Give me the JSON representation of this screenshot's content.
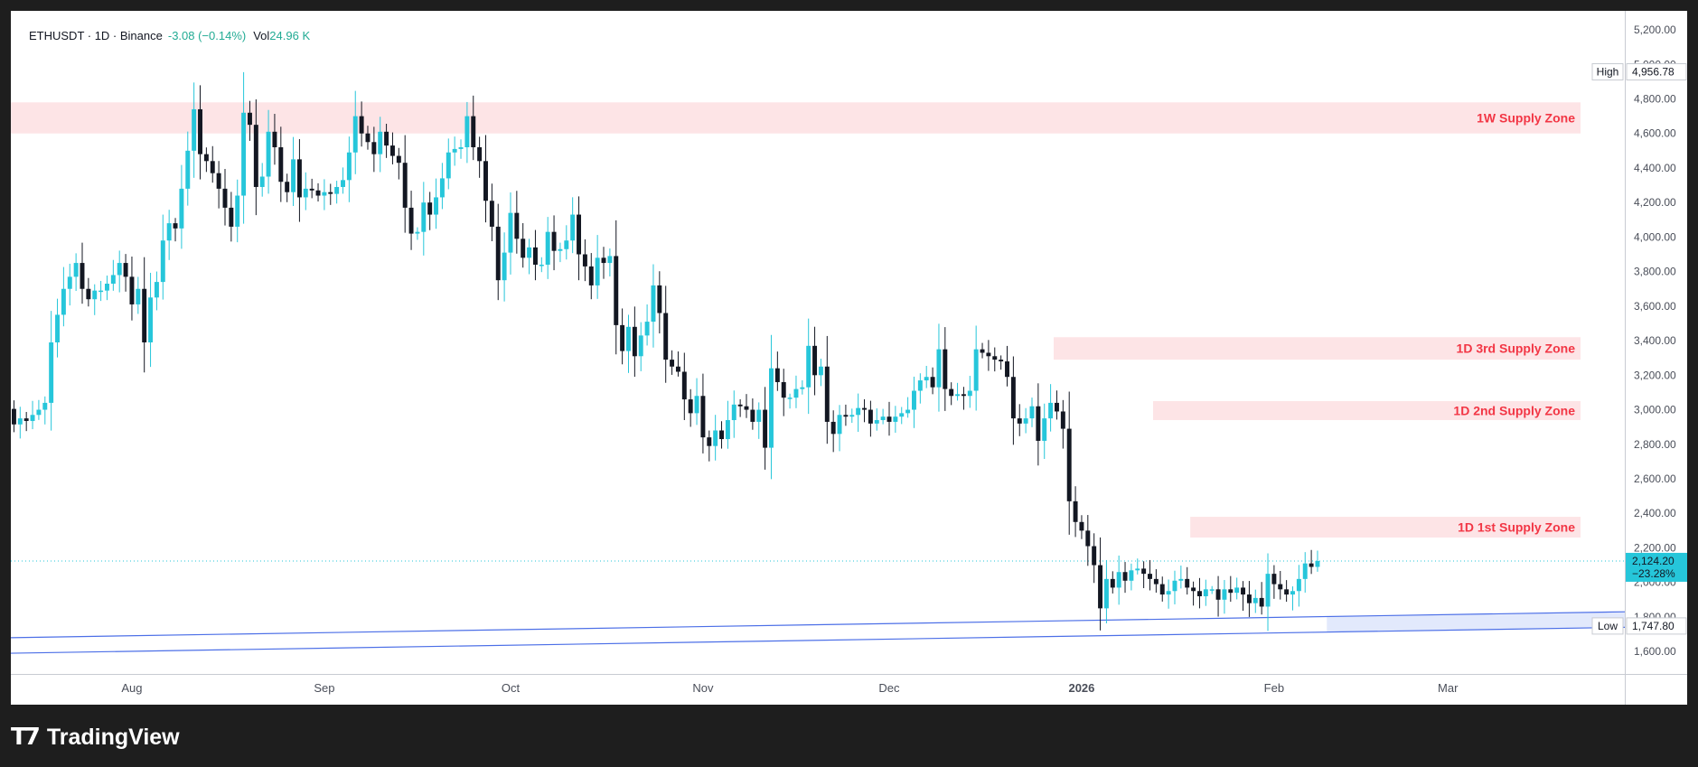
{
  "header": {
    "symbol": "ETHUSDT · 1D · Binance",
    "change": "-3.08 (−0.14%)",
    "vol_label": "Vol",
    "vol_value": "24.96 K"
  },
  "footer": {
    "brand": "TradingView",
    "logo_icon": "tradingview-logo-icon"
  },
  "colors": {
    "up": "#26c6da",
    "down": "#131722",
    "zone_fill": "#fde4e6",
    "zone_text": "#f23645",
    "trendline": "#4c6fe7",
    "last_price_box": "#26c6da",
    "background": "#1e1e1e"
  },
  "chart_data": {
    "type": "candlestick",
    "title": "ETHUSDT · 1D · Binance",
    "ylim": [
      1500,
      5250
    ],
    "y_ticks": [
      1600,
      1800,
      2000,
      2200,
      2400,
      2600,
      2800,
      3000,
      3200,
      3400,
      3600,
      3800,
      4000,
      4200,
      4400,
      4600,
      4800,
      5000,
      5200
    ],
    "y_tick_labels": [
      "1,600.00",
      "1,800.00",
      "2,000.00",
      "2,200.00",
      "2,400.00",
      "2,600.00",
      "2,800.00",
      "3,000.00",
      "3,200.00",
      "3,400.00",
      "3,600.00",
      "3,800.00",
      "4,000.00",
      "4,200.00",
      "4,400.00",
      "4,600.00",
      "4,800.00",
      "5,000.00",
      "5,200.00"
    ],
    "x_labels": [
      {
        "label": "Aug",
        "index": 19
      },
      {
        "label": "Sep",
        "index": 50
      },
      {
        "label": "Oct",
        "index": 80
      },
      {
        "label": "Nov",
        "index": 111
      },
      {
        "label": "Dec",
        "index": 141
      },
      {
        "label": "2026",
        "index": 172
      },
      {
        "label": "Feb",
        "index": 203
      },
      {
        "label": "Mar",
        "index": 231
      }
    ],
    "total_slots": 260,
    "closes": [
      2915,
      2950,
      2935,
      2970,
      3000,
      3040,
      3390,
      3550,
      3700,
      3770,
      3850,
      3700,
      3640,
      3690,
      3690,
      3730,
      3780,
      3850,
      3770,
      3610,
      3700,
      3390,
      3650,
      3740,
      3980,
      4080,
      4050,
      4280,
      4500,
      4740,
      4480,
      4440,
      4370,
      4280,
      4170,
      4060,
      4240,
      4720,
      4650,
      4290,
      4350,
      4610,
      4520,
      4320,
      4260,
      4450,
      4230,
      4280,
      4270,
      4240,
      4260,
      4250,
      4290,
      4330,
      4490,
      4700,
      4600,
      4550,
      4480,
      4610,
      4530,
      4470,
      4430,
      4170,
      4020,
      4030,
      4200,
      4130,
      4230,
      4340,
      4490,
      4510,
      4520,
      4700,
      4520,
      4440,
      4210,
      4060,
      3750,
      3910,
      4140,
      3990,
      3880,
      3940,
      3840,
      3840,
      4030,
      3920,
      3930,
      3980,
      4130,
      3900,
      3830,
      3720,
      3880,
      3850,
      3890,
      3490,
      3340,
      3480,
      3310,
      3430,
      3510,
      3720,
      3560,
      3290,
      3250,
      3220,
      3060,
      2980,
      3080,
      2840,
      2790,
      2880,
      2830,
      2940,
      3030,
      3020,
      3000,
      2930,
      3000,
      2780,
      3240,
      3160,
      3070,
      3070,
      3120,
      3130,
      3370,
      3200,
      3250,
      2930,
      2860,
      2970,
      2960,
      2970,
      3010,
      3000,
      2920,
      2940,
      2960,
      2930,
      2960,
      2980,
      3000,
      3110,
      3170,
      3190,
      3130,
      3350,
      3120,
      3080,
      3090,
      3080,
      3110,
      3350,
      3330,
      3310,
      3290,
      3280,
      3190,
      2950,
      2920,
      2950,
      3020,
      2820,
      2950,
      3040,
      2990,
      2890,
      2470,
      2350,
      2300,
      2210,
      2100,
      1850,
      2020,
      1970,
      2060,
      2010,
      2070,
      2080,
      2050,
      2020,
      1990,
      1930,
      1950,
      2010,
      2020,
      1970,
      1950,
      1920,
      1960,
      1960,
      1900,
      1960,
      1940,
      1970,
      1930,
      1880,
      1910,
      1860,
      2050,
      1990,
      1960,
      1930,
      1950,
      2020,
      2110,
      2090,
      2124.2
    ],
    "last_price": 2124.2,
    "last_price_label": "2,124.20",
    "last_change_label": "−23.28%",
    "high_label": "High",
    "high_value": 4956.78,
    "high_value_label": "4,956.78",
    "low_label": "Low",
    "low_value": 1747.8,
    "low_value_label": "1,747.80",
    "zones": [
      {
        "label": "1W Supply Zone",
        "top": 4780,
        "bottom": 4600,
        "start_index": 0
      },
      {
        "label": "1D 3rd Supply Zone",
        "top": 3420,
        "bottom": 3290,
        "start_index": 168
      },
      {
        "label": "1D 2nd Supply Zone",
        "top": 3050,
        "bottom": 2940,
        "start_index": 184
      },
      {
        "label": "1D 1st Supply Zone",
        "top": 2380,
        "bottom": 2260,
        "start_index": 190
      }
    ],
    "trendlines": [
      {
        "start_index": 0,
        "start_value": 1680,
        "end_index": 260,
        "end_value": 1830
      },
      {
        "start_index": 0,
        "start_value": 1590,
        "end_index": 260,
        "end_value": 1740
      }
    ]
  }
}
